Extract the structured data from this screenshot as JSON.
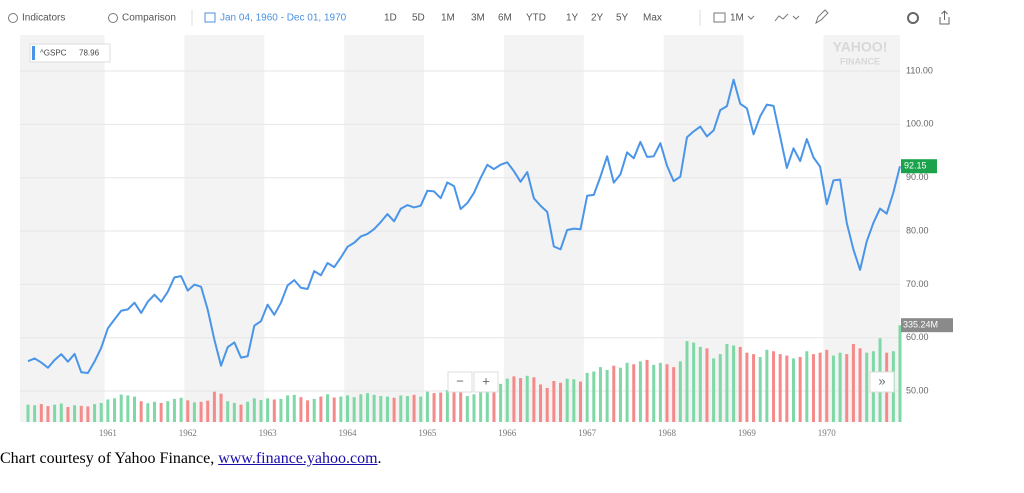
{
  "toolbar": {
    "indicators": "Indicators",
    "comparison": "Comparison",
    "date_range": "Jan 04, 1960 - Dec 01, 1970",
    "ranges": [
      "1D",
      "5D",
      "1M",
      "3M",
      "6M",
      "YTD",
      "1Y",
      "2Y",
      "5Y",
      "Max"
    ],
    "interval": "1M"
  },
  "chart_data": {
    "type": "line",
    "watermark": [
      "YAHOO!",
      "FINANCE"
    ],
    "legend_value": 78.96,
    "categories": [
      null,
      null,
      null,
      null,
      null,
      null,
      null,
      null,
      null,
      null,
      null,
      null,
      "1961",
      null,
      null,
      null,
      null,
      null,
      null,
      null,
      null,
      null,
      null,
      null,
      "1962",
      null,
      null,
      null,
      null,
      null,
      null,
      null,
      null,
      null,
      null,
      null,
      "1963",
      null,
      null,
      null,
      null,
      null,
      null,
      null,
      null,
      null,
      null,
      null,
      "1964",
      null,
      null,
      null,
      null,
      null,
      null,
      null,
      null,
      null,
      null,
      null,
      "1965",
      null,
      null,
      null,
      null,
      null,
      null,
      null,
      null,
      null,
      null,
      null,
      "1966",
      null,
      null,
      null,
      null,
      null,
      null,
      null,
      null,
      null,
      null,
      null,
      "1967",
      null,
      null,
      null,
      null,
      null,
      null,
      null,
      null,
      null,
      null,
      null,
      "1968",
      null,
      null,
      null,
      null,
      null,
      null,
      null,
      null,
      null,
      null,
      null,
      "1969",
      null,
      null,
      null,
      null,
      null,
      null,
      null,
      null,
      null,
      null,
      null,
      "1970",
      null,
      null,
      null,
      null,
      null,
      null,
      null,
      null,
      null,
      null,
      null
    ],
    "series": [
      {
        "name": "^GSPC",
        "color": "#4a95e8",
        "values": [
          55.61,
          56.12,
          55.34,
          54.37,
          55.83,
          56.92,
          55.51,
          56.96,
          53.52,
          53.39,
          55.54,
          58.11,
          61.78,
          63.44,
          65.06,
          65.31,
          66.56,
          64.64,
          66.76,
          68.07,
          66.73,
          68.62,
          71.32,
          71.55,
          68.84,
          69.96,
          69.55,
          65.24,
          59.63,
          54.75,
          58.23,
          59.12,
          56.27,
          56.52,
          62.26,
          63.1,
          66.2,
          64.29,
          66.57,
          69.8,
          70.8,
          69.37,
          69.13,
          72.5,
          71.7,
          74.01,
          73.23,
          75.02,
          77.04,
          77.8,
          78.98,
          79.46,
          80.37,
          81.69,
          83.18,
          81.83,
          84.18,
          84.86,
          84.42,
          84.75,
          87.56,
          87.43,
          86.16,
          89.11,
          88.42,
          84.12,
          85.25,
          87.17,
          89.96,
          92.42,
          91.61,
          92.43,
          92.88,
          91.22,
          89.23,
          91.06,
          86.13,
          84.74,
          83.6,
          77.1,
          76.56,
          80.2,
          80.45,
          80.33,
          86.61,
          86.78,
          90.2,
          94.01,
          89.08,
          90.64,
          94.75,
          93.64,
          96.71,
          93.9,
          94.0,
          96.47,
          92.24,
          89.36,
          90.2,
          97.59,
          98.68,
          99.58,
          97.74,
          98.86,
          102.67,
          103.41,
          108.37,
          103.86,
          103.01,
          98.13,
          101.51,
          103.69,
          103.46,
          97.71,
          91.83,
          95.51,
          93.12,
          97.24,
          93.81,
          92.06,
          85.02,
          89.5,
          89.63,
          81.52,
          76.55,
          72.72,
          78.05,
          81.52,
          84.21,
          83.25,
          87.2,
          92.15
        ]
      },
      {
        "type": "bar",
        "axis": "y2",
        "up_color": "#7fd8a6",
        "down_color": "#f48a8a",
        "values": [
          60,
          58,
          62,
          55,
          60,
          64,
          52,
          58,
          56,
          54,
          62,
          66,
          78,
          82,
          95,
          92,
          88,
          72,
          65,
          70,
          66,
          72,
          80,
          84,
          75,
          68,
          70,
          74,
          105,
          98,
          72,
          66,
          60,
          70,
          82,
          76,
          82,
          78,
          80,
          92,
          94,
          86,
          75,
          80,
          88,
          96,
          85,
          88,
          92,
          86,
          96,
          100,
          94,
          90,
          88,
          84,
          92,
          90,
          94,
          88,
          105,
          100,
          102,
          110,
          106,
          112,
          90,
          96,
          110,
          122,
          128,
          132,
          150,
          158,
          152,
          160,
          155,
          130,
          118,
          142,
          136,
          150,
          148,
          140,
          170,
          175,
          190,
          180,
          195,
          188,
          205,
          200,
          210,
          215,
          198,
          205,
          200,
          190,
          210,
          280,
          275,
          260,
          255,
          220,
          235,
          270,
          265,
          260,
          240,
          235,
          225,
          250,
          245,
          235,
          230,
          220,
          225,
          245,
          235,
          240,
          250,
          230,
          240,
          235,
          270,
          255,
          240,
          245,
          290,
          240,
          245,
          335.24
        ]
      }
    ],
    "ylim": [
      44.2,
      116.75
    ],
    "yticks": [
      {
        "value": 50,
        "label": "50.00"
      },
      {
        "value": 60,
        "label": "60.00"
      },
      {
        "value": 70,
        "label": "70.00"
      },
      {
        "value": 80,
        "label": "80.00"
      },
      {
        "value": 90,
        "label": "90.00"
      },
      {
        "value": 100,
        "label": "100.00"
      },
      {
        "value": 110,
        "label": "110.00"
      }
    ],
    "y2lim": [
      0,
      1340
    ],
    "grid": true,
    "price_label": 92.15,
    "price_label_color": "#1aa34a",
    "volume_label": {
      "value": 335.24,
      "label": "335.24M"
    },
    "zoom": [
      "−",
      "+"
    ],
    "scroll": "»"
  },
  "caption": {
    "text": "Chart courtesy of Yahoo Finance, ",
    "link": "www.finance.yahoo.com",
    "end": "."
  }
}
